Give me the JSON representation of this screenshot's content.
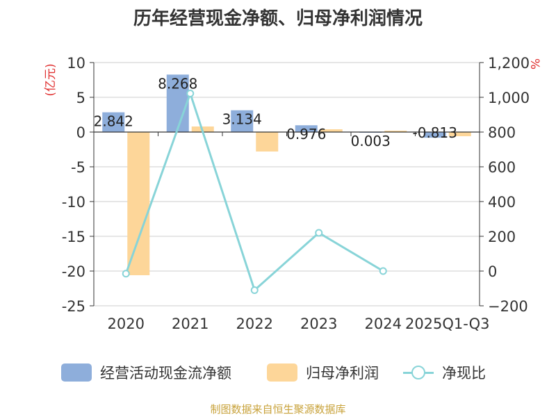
{
  "chart_data": {
    "type": "bar",
    "title": "历年经营现金净额、归母净利润情况",
    "left_axis_label": "(亿元)",
    "right_axis_label": "%",
    "categories": [
      "2020",
      "2021",
      "2022",
      "2023",
      "2024",
      "2025Q1-Q3"
    ],
    "left_axis": {
      "ylim": [
        -25,
        10
      ],
      "ticks": [
        10,
        5,
        0,
        -5,
        -10,
        -15,
        -20,
        -25
      ]
    },
    "right_axis": {
      "ylim": [
        -200,
        1200
      ],
      "ticks": [
        "1,200",
        "1,000",
        "800",
        "600",
        "400",
        "200",
        "0",
        "−200"
      ],
      "tick_values": [
        1200,
        1000,
        800,
        600,
        400,
        200,
        0,
        -200
      ]
    },
    "series": [
      {
        "name": "经营活动现金流净额",
        "type": "bar",
        "axis": "left",
        "color": "#8eaedb",
        "values": [
          2.842,
          8.268,
          3.134,
          0.976,
          0.003,
          -0.813
        ],
        "labels": [
          "2.842",
          "8.268",
          "3.134",
          "0.976",
          "0.003",
          "-0.813"
        ]
      },
      {
        "name": "归母净利润",
        "type": "bar",
        "axis": "left",
        "color": "#fdd699",
        "values": [
          -20.6,
          0.8,
          -2.8,
          0.4,
          0.2,
          -0.6
        ]
      },
      {
        "name": "净现比",
        "type": "line",
        "axis": "right",
        "color": "#88d4d8",
        "values": [
          -15,
          1022,
          -110,
          220,
          0,
          null
        ]
      }
    ],
    "source": "制图数据来自恒生聚源数据库"
  }
}
